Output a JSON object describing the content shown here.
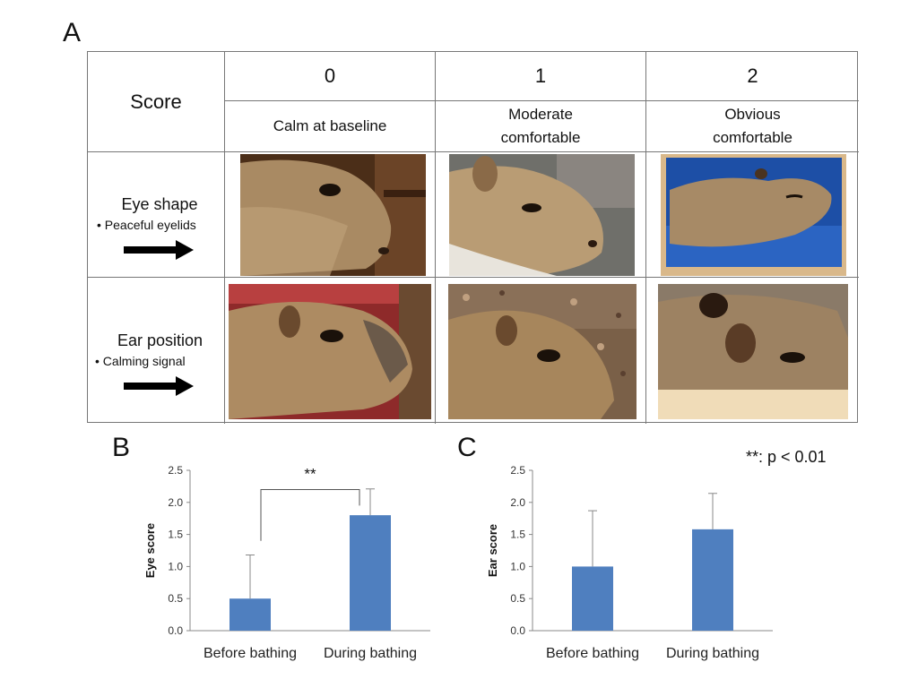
{
  "panel_a": {
    "letter": "A",
    "header_label": "Score",
    "columns": [
      {
        "score": "0",
        "line1": "Calm at baseline",
        "line2": ""
      },
      {
        "score": "1",
        "line1": "Moderate",
        "line2": "comfortable"
      },
      {
        "score": "2",
        "line1": "Obvious",
        "line2": "comfortable"
      }
    ],
    "rows": [
      {
        "title": "Eye shape",
        "sub": "• Peaceful eyelids"
      },
      {
        "title": "Ear position",
        "sub": "• Calming signal"
      }
    ],
    "photo_colors": {
      "fur": "#b0906a",
      "fur_dark": "#7d6040",
      "wood": "#5a3a20",
      "pool_blue": "#1d4fa6",
      "red_wall": "#8e2a2a"
    }
  },
  "significance_note": "**: p < 0.01",
  "colors": {
    "bar": "#4f7fbf",
    "axis": "#888888",
    "bracket": "#555555"
  },
  "chart_data": [
    {
      "type": "bar",
      "panel_letter": "B",
      "categories": [
        "Before bathing",
        "During bathing"
      ],
      "values": [
        0.5,
        1.8
      ],
      "error": [
        0.68,
        0.41
      ],
      "ylabel": "Eye score",
      "ylim": [
        0,
        2.5
      ],
      "yticks": [
        "0.0",
        "0.5",
        "1.0",
        "1.5",
        "2.0",
        "2.5"
      ],
      "significance": "**",
      "grid": false
    },
    {
      "type": "bar",
      "panel_letter": "C",
      "categories": [
        "Before bathing",
        "During bathing"
      ],
      "values": [
        1.0,
        1.58
      ],
      "error": [
        0.87,
        0.56
      ],
      "ylabel": "Ear score",
      "ylim": [
        0,
        2.5
      ],
      "yticks": [
        "0.0",
        "0.5",
        "1.0",
        "1.5",
        "2.0",
        "2.5"
      ],
      "significance": "",
      "grid": false
    }
  ]
}
